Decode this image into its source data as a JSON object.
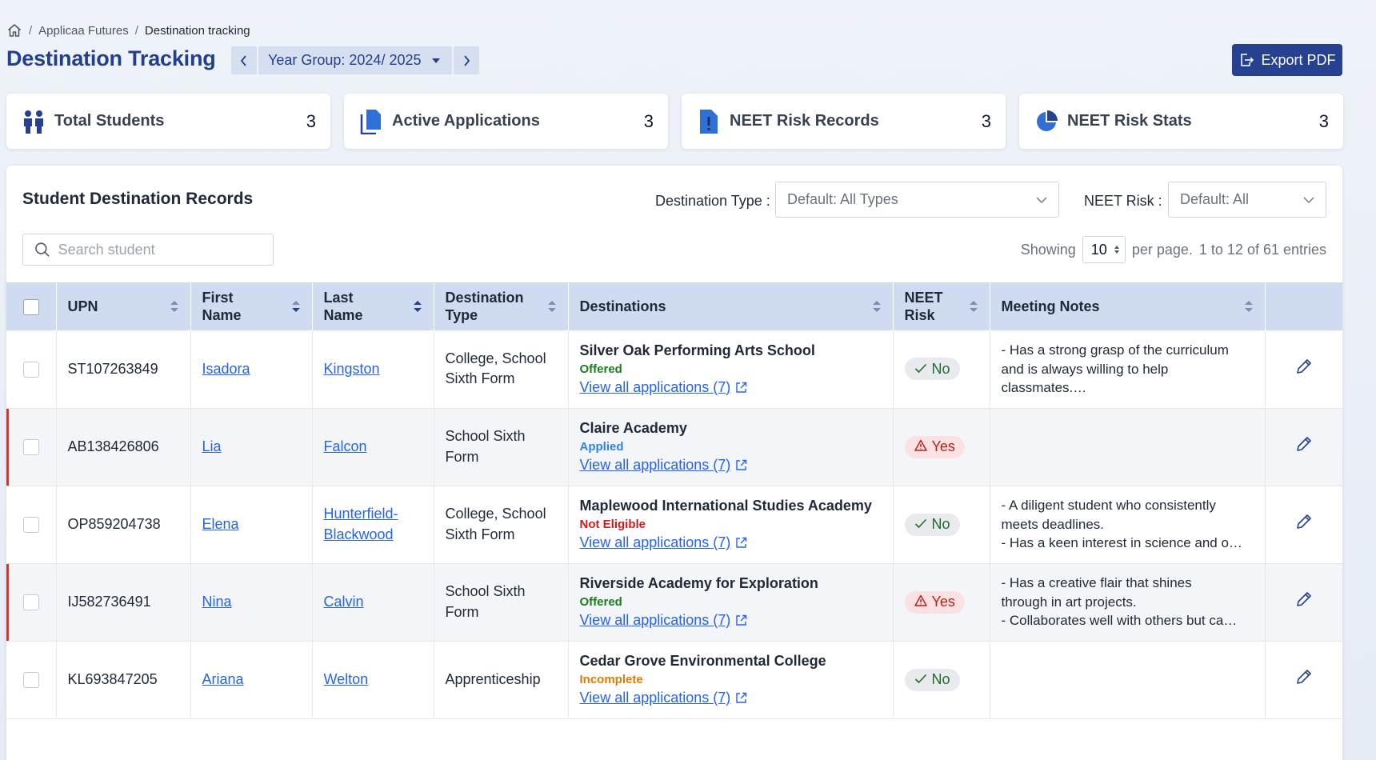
{
  "breadcrumb": {
    "items": [
      "Applicaa Futures",
      "Destination tracking"
    ],
    "separator": "/"
  },
  "header": {
    "title": "Destination Tracking",
    "year_group": "Year Group: 2024/ 2025",
    "export_label": "Export PDF"
  },
  "stats": [
    {
      "label": "Total Students",
      "value": "3",
      "icon": "people-icon"
    },
    {
      "label": "Active Applications",
      "value": "3",
      "icon": "documents-icon"
    },
    {
      "label": "NEET Risk Records",
      "value": "3",
      "icon": "alert-document-icon"
    },
    {
      "label": "NEET Risk Stats",
      "value": "3",
      "icon": "pie-chart-icon"
    }
  ],
  "panel": {
    "title": "Student Destination Records",
    "filter_type_label": "Destination Type :",
    "filter_type_value": "Default: All Types",
    "filter_risk_label": "NEET Risk :",
    "filter_risk_value": "Default: All",
    "search_placeholder": "Search student",
    "showing_label": "Showing",
    "per_page_value": "10",
    "per_page_suffix": "per page.",
    "entries_text": "1 to 12 of 61 entries"
  },
  "columns": [
    "UPN",
    "First Name",
    "Last Name",
    "Destination Type",
    "Destinations",
    "NEET Risk",
    "Meeting Notes"
  ],
  "rows": [
    {
      "upn": "ST107263849",
      "first": "Isadora",
      "last": "Kingston",
      "type": "College, School Sixth Form",
      "dest": "Silver Oak Performing Arts School",
      "status": "Offered",
      "status_class": "offered",
      "view": "View all applications (7)",
      "risk": "No",
      "notes": [
        "- Has a strong grasp of the curriculum",
        "and is always willing to help",
        "classmates.…"
      ]
    },
    {
      "upn": "AB138426806",
      "first": "Lia",
      "last": "Falcon",
      "type": "School Sixth Form",
      "dest": "Claire Academy",
      "status": "Applied",
      "status_class": "applied",
      "view": "View all applications (7)",
      "risk": "Yes",
      "notes": []
    },
    {
      "upn": "OP859204738",
      "first": "Elena",
      "last": "Hunterfield-Blackwood",
      "type": "College, School Sixth Form",
      "dest": "Maplewood International Studies Academy",
      "status": "Not Eligible",
      "status_class": "noteligible",
      "view": "View all applications (7)",
      "risk": "No",
      "notes": [
        "- A diligent student who consistently",
        "meets deadlines.",
        "- Has a keen interest in science and o…"
      ]
    },
    {
      "upn": "IJ582736491",
      "first": "Nina",
      "last": "Calvin",
      "type": "School Sixth Form",
      "dest": "Riverside Academy for Exploration",
      "status": "Offered",
      "status_class": "offered",
      "view": "View all applications (7)",
      "risk": "Yes",
      "notes": [
        "- Has a creative flair that shines",
        "through in art projects.",
        "- Collaborates well with others but ca…"
      ]
    },
    {
      "upn": "KL693847205",
      "first": "Ariana",
      "last": "Welton",
      "type": "Apprenticeship",
      "dest": "Cedar Grove Environmental College",
      "status": "Incomplete",
      "status_class": "incomplete",
      "view": "View all applications (7)",
      "risk": "No",
      "notes": []
    }
  ],
  "colors": {
    "brand": "#25418f",
    "title": "#233e8b",
    "link": "#2563eb",
    "header_row": "#cfdbf0",
    "risk_bar": "#d9342b"
  }
}
